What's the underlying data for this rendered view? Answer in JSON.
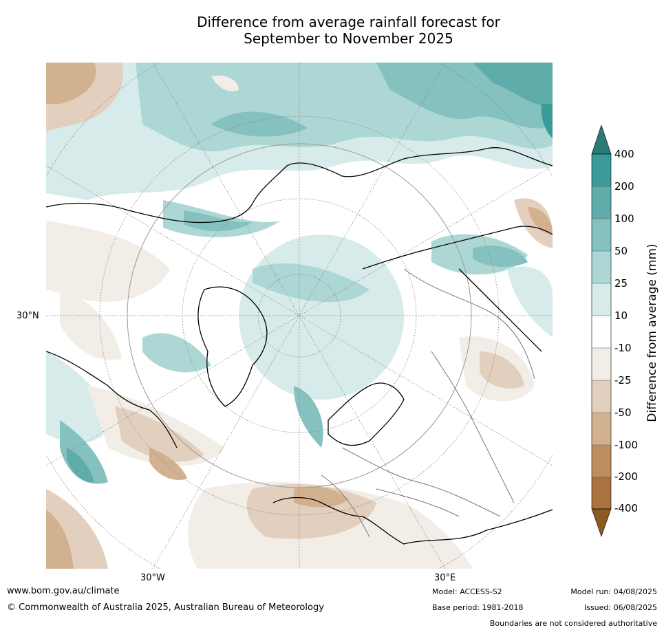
{
  "title_line1": "Difference from average rainfall forecast for",
  "title_line2": "September to November 2025",
  "map": {
    "lat_labels": [
      "30°N"
    ],
    "lon_labels": [
      "30°W",
      "30°E"
    ]
  },
  "colorbar": {
    "label": "Difference from average (mm)",
    "ticks": [
      "400",
      "200",
      "100",
      "50",
      "25",
      "10",
      "-10",
      "-25",
      "-50",
      "-100",
      "-200",
      "-400"
    ],
    "colors": {
      "over": "#2a7a78",
      "200_400": "#3a9b98",
      "100_200": "#5fadab",
      "50_100": "#84c1bf",
      "25_50": "#add7d4",
      "10_25": "#d7ecea",
      "neutral": "#ffffff",
      "m10_m25": "#f2ede6",
      "m25_m50": "#e3cfbd",
      "m50_m100": "#d2b190",
      "m100_m200": "#be8e60",
      "m200_m400": "#a9723f",
      "under": "#8a5a25"
    }
  },
  "footer": {
    "website": "www.bom.gov.au/climate",
    "copyright": "© Commonwealth of Australia 2025, Australian Bureau of Meteorology",
    "model": "Model: ACCESS-S2",
    "base_period": "Base period: 1981-2018",
    "model_run": "Model run: 04/08/2025",
    "issued": "Issued: 06/08/2025",
    "disclaimer": "Boundaries are not considered authoritative"
  }
}
